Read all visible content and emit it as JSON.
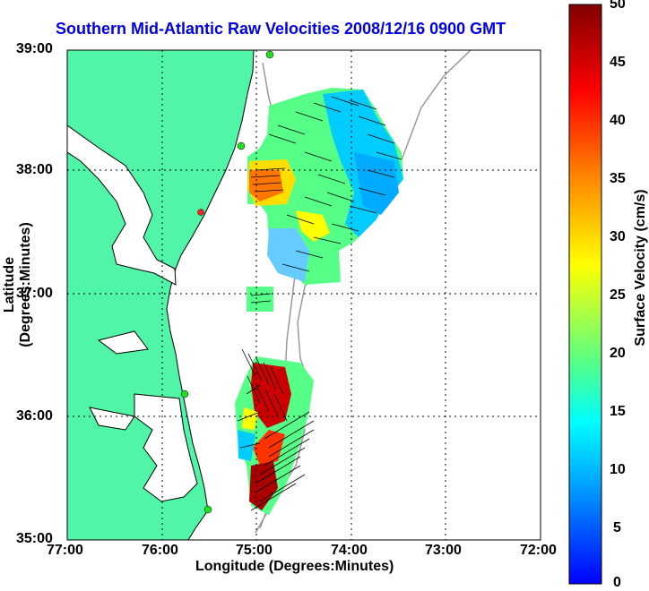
{
  "title": "Southern Mid-Atlantic Raw Velocities 2008/12/16 0900 GMT",
  "xlabel": "Longitude (Degrees:Minutes)",
  "ylabel": "Latitude (Degrees:Minutes)",
  "xticks": [
    "77:00",
    "76:00",
    "75:00",
    "74:00",
    "73:00",
    "72:00"
  ],
  "yticks": [
    "39:00",
    "38:00",
    "37:00",
    "36:00",
    "35:00"
  ],
  "colorbar": {
    "label": "Surface Velocity (cm/s)",
    "ticks": [
      "50",
      "45",
      "40",
      "35",
      "30",
      "25",
      "20",
      "15",
      "10",
      "5",
      "0"
    ],
    "colors": [
      "#0000ff",
      "#00aaff",
      "#00ffff",
      "#55ff88",
      "#ffff00",
      "#ff8800",
      "#ff0000",
      "#800000"
    ]
  },
  "colors": {
    "land": "#50f5a8",
    "water": "#ffffff",
    "title": "#0000e6",
    "bathy": "#999999"
  }
}
